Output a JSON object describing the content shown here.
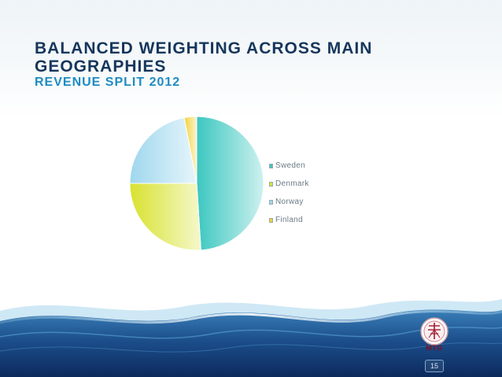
{
  "slide": {
    "title": "BALANCED WEIGHTING ACROSS MAIN GEOGRAPHIES",
    "subtitle": "REVENUE SPLIT 2012",
    "logo_text": "MTG",
    "page_number": "15"
  },
  "chart_data": {
    "type": "pie",
    "title": "",
    "categories": [
      "Sweden",
      "Denmark",
      "Norway",
      "Finland"
    ],
    "values": [
      49,
      26,
      22,
      3
    ],
    "colors": [
      "#3cc7c0",
      "#d8e22f",
      "#9fd7ee",
      "#f2d23c"
    ],
    "legend_position": "right",
    "start_angle_deg": 0,
    "direction": "clockwise"
  }
}
